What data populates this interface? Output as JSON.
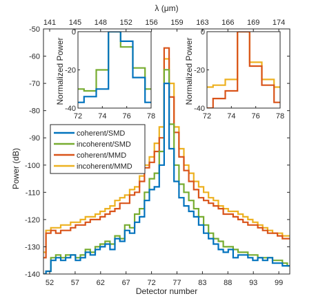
{
  "chart_data": {
    "type": "line",
    "step": true,
    "xlabel": "Detector number",
    "ylabel": "Power (dB)",
    "top_axis_label": "λ (μm)",
    "xlim": [
      50,
      100
    ],
    "ylim": [
      -140,
      -50
    ],
    "x_ticks": [
      "52",
      "57",
      "62",
      "67",
      "72",
      "77",
      "83",
      "88",
      "93",
      "99"
    ],
    "y_ticks": [
      "-50",
      "-60",
      "-70",
      "-80",
      "-90",
      "-100",
      "-110",
      "-120",
      "-130",
      "-140"
    ],
    "top_ticks": [
      "141",
      "145",
      "148",
      "152",
      "156",
      "159",
      "163",
      "166",
      "169",
      "174"
    ],
    "colors": {
      "coherent_smd": "#0072BD",
      "incoherent_smd": "#77AC30",
      "coherent_mmd": "#D95319",
      "incoherent_mmd": "#EDB120"
    },
    "x": [
      50,
      51,
      52,
      53,
      54,
      55,
      56,
      57,
      58,
      59,
      60,
      61,
      62,
      63,
      64,
      65,
      66,
      67,
      68,
      69,
      70,
      71,
      72,
      73,
      74,
      75,
      76,
      77,
      78,
      79,
      80,
      81,
      82,
      83,
      84,
      85,
      86,
      87,
      88,
      89,
      90,
      91,
      92,
      93,
      94,
      95,
      96,
      97,
      98,
      99,
      100
    ],
    "series": [
      {
        "name": "coherent/SMD",
        "color_key": "coherent_smd",
        "values": [
          -140,
          -139,
          -135,
          -134,
          -135,
          -134,
          -133,
          -135,
          -134,
          -132,
          -133,
          -131,
          -130,
          -129,
          -131,
          -127,
          -128,
          -124,
          -125,
          -121,
          -119,
          -113,
          -109,
          -108,
          -100,
          -70,
          -94,
          -106,
          -112,
          -115,
          -117,
          -119,
          -122,
          -125,
          -127,
          -129,
          -131,
          -132,
          -131,
          -134,
          -133,
          -133,
          -134,
          -135,
          -134,
          -135,
          -134,
          -136,
          -136,
          -137,
          -137
        ]
      },
      {
        "name": "incoherent/SMD",
        "color_key": "incoherent_smd",
        "values": [
          -140,
          -139,
          -134,
          -133,
          -134,
          -133,
          -133,
          -134,
          -133,
          -131,
          -132,
          -130,
          -129,
          -128,
          -129,
          -126,
          -127,
          -122,
          -123,
          -118,
          -116,
          -110,
          -105,
          -103,
          -95,
          -65,
          -85,
          -100,
          -107,
          -110,
          -113,
          -116,
          -119,
          -122,
          -125,
          -127,
          -128,
          -130,
          -130,
          -131,
          -132,
          -132,
          -133,
          -133,
          -134,
          -134,
          -134,
          -135,
          -135,
          -136,
          -137
        ]
      },
      {
        "name": "coherent/MMD",
        "color_key": "coherent_mmd",
        "values": [
          -134,
          -125,
          -124,
          -125,
          -124,
          -124,
          -123,
          -122,
          -122,
          -121,
          -120,
          -120,
          -119,
          -118,
          -117,
          -116,
          -114,
          -114,
          -111,
          -110,
          -106,
          -101,
          -99,
          -95,
          -90,
          -57,
          -75,
          -88,
          -97,
          -102,
          -106,
          -109,
          -112,
          -113,
          -114,
          -115,
          -116,
          -118,
          -118,
          -119,
          -120,
          -121,
          -122,
          -122,
          -123,
          -124,
          -125,
          -125,
          -126,
          -127,
          -127
        ]
      },
      {
        "name": "incoherent/MMD",
        "color_key": "incoherent_mmd",
        "values": [
          -132,
          -124,
          -123,
          -123,
          -122,
          -122,
          -121,
          -121,
          -120,
          -119,
          -119,
          -118,
          -117,
          -116,
          -115,
          -113,
          -112,
          -111,
          -109,
          -108,
          -104,
          -100,
          -97,
          -92,
          -86,
          -61,
          -70,
          -86,
          -94,
          -100,
          -103,
          -106,
          -108,
          -110,
          -112,
          -113,
          -115,
          -116,
          -117,
          -117,
          -118,
          -119,
          -120,
          -121,
          -122,
          -123,
          -124,
          -125,
          -125,
          -126,
          -126
        ]
      }
    ],
    "legend": {
      "placement": "middle-left",
      "entries": [
        "coherent/SMD",
        "incoherent/SMD",
        "coherent/MMD",
        "incoherent/MMD"
      ]
    },
    "insets": [
      {
        "placement": "top-left",
        "ylabel": "Normalized Power",
        "xlim": [
          72,
          78
        ],
        "ylim": [
          -40,
          0
        ],
        "x_ticks": [
          "72",
          "74",
          "76",
          "78"
        ],
        "y_ticks": [
          "0",
          "-20",
          "-40"
        ],
        "x": [
          72,
          73,
          74,
          75,
          76,
          77,
          78
        ],
        "series": [
          {
            "name": "coherent/SMD",
            "color_key": "coherent_smd",
            "values": [
              -37,
              -34,
              -30,
              0,
              -5,
              -24,
              -37
            ]
          },
          {
            "name": "incoherent/SMD",
            "color_key": "incoherent_smd",
            "values": [
              -30,
              -31,
              -20,
              0,
              -8,
              -19,
              -30
            ]
          }
        ]
      },
      {
        "placement": "top-right",
        "ylabel": "Normalized Power",
        "xlim": [
          72,
          78
        ],
        "ylim": [
          -40,
          0
        ],
        "x_ticks": [
          "72",
          "74",
          "76",
          "78"
        ],
        "y_ticks": [
          "0",
          "-20",
          "-40"
        ],
        "x": [
          72,
          73,
          74,
          75,
          76,
          77,
          78
        ],
        "series": [
          {
            "name": "coherent/MMD",
            "color_key": "coherent_mmd",
            "values": [
              -40,
              -35,
              -31,
              0,
              -18,
              -28,
              -37
            ]
          },
          {
            "name": "incoherent/MMD",
            "color_key": "incoherent_mmd",
            "values": [
              -29,
              -28,
              -25,
              0,
              -16,
              -25,
              -29
            ]
          }
        ]
      }
    ]
  }
}
